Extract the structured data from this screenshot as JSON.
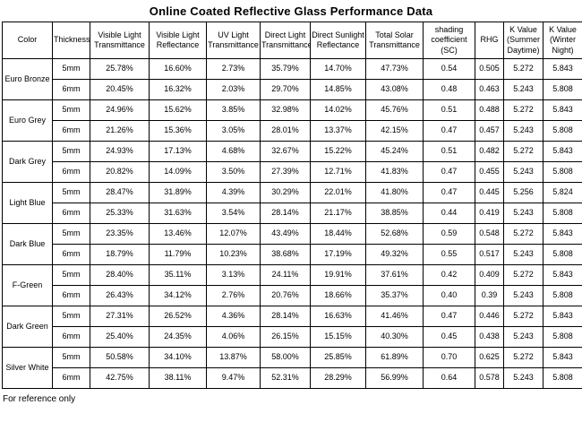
{
  "title": "Online Coated Reflective Glass Performance Data",
  "footer_note": "For reference only",
  "colors": {
    "border": "#000000",
    "background": "#ffffff",
    "text": "#000000"
  },
  "chart_data": {
    "type": "table",
    "title": "Online Coated Reflective Glass Performance Data",
    "columns": [
      "Color",
      "Thickness",
      "Visible Light Transmittance",
      "Visible Light Reflectance",
      "UV Light Transmittance",
      "Direct Light Transmittance",
      "Direct Sunlight Reflectance",
      "Total Solar Transmittance",
      "shading coefficient (SC)",
      "RHG",
      "K Value (Summer Daytime)",
      "K Value (Winter Night)"
    ],
    "groups": [
      {
        "color": "Euro Bronze",
        "rows": [
          {
            "thickness": "5mm",
            "values": [
              "25.78%",
              "16.60%",
              "2.73%",
              "35.79%",
              "14.70%",
              "47.73%",
              "0.54",
              "0.505",
              "5.272",
              "5.843"
            ]
          },
          {
            "thickness": "6mm",
            "values": [
              "20.45%",
              "16.32%",
              "2.03%",
              "29.70%",
              "14.85%",
              "43.08%",
              "0.48",
              "0.463",
              "5.243",
              "5.808"
            ]
          }
        ]
      },
      {
        "color": "Euro Grey",
        "rows": [
          {
            "thickness": "5mm",
            "values": [
              "24.96%",
              "15.62%",
              "3.85%",
              "32.98%",
              "14.02%",
              "45.76%",
              "0.51",
              "0.488",
              "5.272",
              "5.843"
            ]
          },
          {
            "thickness": "6mm",
            "values": [
              "21.26%",
              "15.36%",
              "3.05%",
              "28.01%",
              "13.37%",
              "42.15%",
              "0.47",
              "0.457",
              "5.243",
              "5.808"
            ]
          }
        ]
      },
      {
        "color": "Dark Grey",
        "rows": [
          {
            "thickness": "5mm",
            "values": [
              "24.93%",
              "17.13%",
              "4.68%",
              "32.67%",
              "15.22%",
              "45.24%",
              "0.51",
              "0.482",
              "5.272",
              "5.843"
            ]
          },
          {
            "thickness": "6mm",
            "values": [
              "20.82%",
              "14.09%",
              "3.50%",
              "27.39%",
              "12.71%",
              "41.83%",
              "0.47",
              "0.455",
              "5.243",
              "5.808"
            ]
          }
        ]
      },
      {
        "color": "Light Blue",
        "rows": [
          {
            "thickness": "5mm",
            "values": [
              "28.47%",
              "31.89%",
              "4.39%",
              "30.29%",
              "22.01%",
              "41.80%",
              "0.47",
              "0.445",
              "5.256",
              "5.824"
            ]
          },
          {
            "thickness": "6mm",
            "values": [
              "25.33%",
              "31.63%",
              "3.54%",
              "28.14%",
              "21.17%",
              "38.85%",
              "0.44",
              "0.419",
              "5.243",
              "5.808"
            ]
          }
        ]
      },
      {
        "color": "Dark Blue",
        "rows": [
          {
            "thickness": "5mm",
            "values": [
              "23.35%",
              "13.46%",
              "12.07%",
              "43.49%",
              "18.44%",
              "52.68%",
              "0.59",
              "0.548",
              "5.272",
              "5.843"
            ]
          },
          {
            "thickness": "6mm",
            "values": [
              "18.79%",
              "11.79%",
              "10.23%",
              "38.68%",
              "17.19%",
              "49.32%",
              "0.55",
              "0.517",
              "5.243",
              "5.808"
            ]
          }
        ]
      },
      {
        "color": "F-Green",
        "rows": [
          {
            "thickness": "5mm",
            "values": [
              "28.40%",
              "35.11%",
              "3.13%",
              "24.11%",
              "19.91%",
              "37.61%",
              "0.42",
              "0.409",
              "5.272",
              "5.843"
            ]
          },
          {
            "thickness": "6mm",
            "values": [
              "26.43%",
              "34.12%",
              "2.76%",
              "20.76%",
              "18.66%",
              "35.37%",
              "0.40",
              "0.39",
              "5.243",
              "5.808"
            ]
          }
        ]
      },
      {
        "color": "Dark Green",
        "rows": [
          {
            "thickness": "5mm",
            "values": [
              "27.31%",
              "26.52%",
              "4.36%",
              "28.14%",
              "16.63%",
              "41.46%",
              "0.47",
              "0.446",
              "5.272",
              "5.843"
            ]
          },
          {
            "thickness": "6mm",
            "values": [
              "25.40%",
              "24.35%",
              "4.06%",
              "26.15%",
              "15.15%",
              "40.30%",
              "0.45",
              "0.438",
              "5.243",
              "5.808"
            ]
          }
        ]
      },
      {
        "color": "Silver White",
        "rows": [
          {
            "thickness": "5mm",
            "values": [
              "50.58%",
              "34.10%",
              "13.87%",
              "58.00%",
              "25.85%",
              "61.89%",
              "0.70",
              "0.625",
              "5.272",
              "5.843"
            ]
          },
          {
            "thickness": "6mm",
            "values": [
              "42.75%",
              "38.11%",
              "9.47%",
              "52.31%",
              "28.29%",
              "56.99%",
              "0.64",
              "0.578",
              "5.243",
              "5.808"
            ]
          }
        ]
      }
    ]
  }
}
